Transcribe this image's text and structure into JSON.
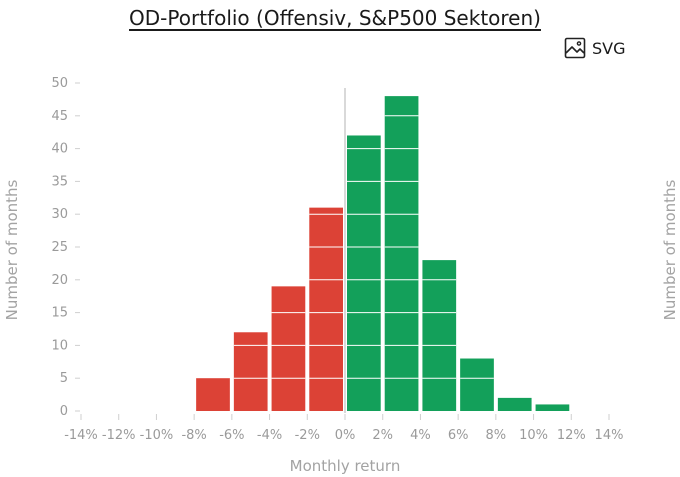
{
  "header": {
    "title": "OD-Portfolio (Offensiv, S&P500 Sektoren)",
    "export_label": "SVG"
  },
  "colors": {
    "negative": "#dc4236",
    "positive": "#13a05a",
    "zero_line": "#d9d9d9",
    "tick": "#cfcfcf",
    "text": "#9a9a9a"
  },
  "chart_data": {
    "type": "bar",
    "title": "OD-Portfolio (Offensiv, S&P500 Sektoren)",
    "xlabel": "Monthly return",
    "ylabel": "Number of months",
    "ylabel_right": "Number of months",
    "xlim": [
      -14,
      14
    ],
    "ylim": [
      0,
      50
    ],
    "y_ticks": [
      0,
      5,
      10,
      15,
      20,
      25,
      30,
      35,
      40,
      45,
      50
    ],
    "y_tick_labels": [
      "0",
      "5",
      "10",
      "15",
      "20",
      "25",
      "30",
      "35",
      "40",
      "45",
      "50"
    ],
    "x_ticks": [
      -14,
      -12,
      -10,
      -8,
      -6,
      -4,
      -2,
      0,
      2,
      4,
      6,
      8,
      10,
      12,
      14
    ],
    "x_tick_labels": [
      "-14%",
      "-12%",
      "-10%",
      "-8%",
      "-6%",
      "-4%",
      "-2%",
      "0%",
      "2%",
      "4%",
      "6%",
      "8%",
      "10%",
      "12%",
      "14%"
    ],
    "bin_width": 2,
    "bins": [
      {
        "center": -7,
        "count": 5
      },
      {
        "center": -5,
        "count": 12
      },
      {
        "center": -3,
        "count": 19
      },
      {
        "center": -1,
        "count": 31
      },
      {
        "center": 1,
        "count": 42
      },
      {
        "center": 3,
        "count": 48
      },
      {
        "center": 5,
        "count": 23
      },
      {
        "center": 7,
        "count": 8
      },
      {
        "center": 9,
        "count": 2
      },
      {
        "center": 11,
        "count": 1
      }
    ],
    "grid": false
  }
}
